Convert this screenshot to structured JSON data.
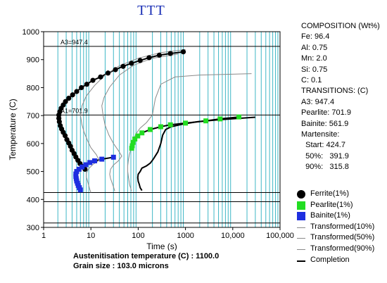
{
  "title": "TTT",
  "chart_data": {
    "type": "line",
    "xlabel": "Time (s)",
    "ylabel": "Temperature (C)",
    "x_scale": "log",
    "xlim": [
      1,
      100000
    ],
    "ylim": [
      300,
      1000
    ],
    "x_ticks": [
      {
        "value": 1,
        "label": "1"
      },
      {
        "value": 10,
        "label": "10"
      },
      {
        "value": 100,
        "label": "100"
      },
      {
        "value": 1000,
        "label": "1000"
      },
      {
        "value": 10000,
        "label": "10,000"
      },
      {
        "value": 100000,
        "label": "100,000"
      }
    ],
    "y_ticks": [
      300,
      400,
      500,
      600,
      700,
      800,
      900,
      1000
    ],
    "horizontal_lines": [
      {
        "y": 947.4,
        "label": "A3=947.4"
      },
      {
        "y": 701.9,
        "label": "A1=701.9"
      },
      {
        "y": 424.7,
        "label": ""
      },
      {
        "y": 391.9,
        "label": ""
      },
      {
        "y": 315.8,
        "label": ""
      }
    ],
    "series": [
      {
        "name": "Ferrite(1%)",
        "marker": "circle",
        "color": "#000000",
        "points": [
          [
            900,
            928
          ],
          [
            480,
            922
          ],
          [
            280,
            916
          ],
          [
            170,
            907
          ],
          [
            110,
            897
          ],
          [
            72,
            887
          ],
          [
            48,
            876
          ],
          [
            33,
            864
          ],
          [
            23,
            852
          ],
          [
            16,
            838
          ],
          [
            11,
            826
          ],
          [
            8.2,
            812
          ],
          [
            6.3,
            800
          ],
          [
            5,
            786
          ],
          [
            4.1,
            774
          ],
          [
            3.4,
            762
          ],
          [
            2.9,
            750
          ],
          [
            2.6,
            738
          ],
          [
            2.35,
            726
          ],
          [
            2.2,
            714
          ],
          [
            2.1,
            702
          ],
          [
            2.1,
            690
          ],
          [
            2.15,
            678
          ],
          [
            2.25,
            664
          ],
          [
            2.4,
            652
          ],
          [
            2.6,
            640
          ],
          [
            2.85,
            628
          ],
          [
            3.1,
            614
          ],
          [
            3.4,
            602
          ],
          [
            3.7,
            590
          ],
          [
            4.0,
            576
          ],
          [
            4.4,
            564
          ],
          [
            4.8,
            552
          ],
          [
            5.3,
            540
          ],
          [
            5.9,
            528
          ],
          [
            6.6,
            518
          ],
          [
            7.5,
            508
          ]
        ]
      },
      {
        "name": "Pearlite(1%)",
        "marker": "square",
        "color": "#22dd22",
        "points": [
          [
            13500,
            695
          ],
          [
            5400,
            688
          ],
          [
            2700,
            681
          ],
          [
            1000,
            673
          ],
          [
            480,
            667
          ],
          [
            300,
            660
          ],
          [
            180,
            650
          ],
          [
            120,
            638
          ],
          [
            98,
            627
          ],
          [
            85,
            616
          ],
          [
            78,
            604
          ],
          [
            75,
            592
          ],
          [
            73,
            583
          ]
        ]
      },
      {
        "name": "Bainite(1%)",
        "marker": "square",
        "color": "#1e2fe0",
        "points": [
          [
            30,
            551
          ],
          [
            17,
            544
          ],
          [
            12,
            538
          ],
          [
            9.5,
            532
          ],
          [
            7.8,
            524
          ],
          [
            6.5,
            516
          ],
          [
            5.6,
            508
          ],
          [
            5,
            500
          ],
          [
            4.8,
            491
          ],
          [
            4.8,
            482
          ],
          [
            4.9,
            474
          ],
          [
            5,
            466
          ],
          [
            5.2,
            458
          ],
          [
            5.4,
            450
          ],
          [
            5.7,
            442
          ],
          [
            6,
            434
          ]
        ]
      },
      {
        "name": "Transformed(10%)",
        "color": "#8a8a8a",
        "points": [
          [
            1000,
            936
          ],
          [
            300,
            925
          ],
          [
            100,
            905
          ],
          [
            40,
            878
          ],
          [
            20,
            845
          ],
          [
            12,
            808
          ],
          [
            8,
            770
          ],
          [
            6.5,
            735
          ],
          [
            6,
            702
          ],
          [
            6.4,
            670
          ],
          [
            7.2,
            640
          ],
          [
            8.5,
            610
          ],
          [
            10,
            585
          ],
          [
            13,
            560
          ],
          [
            15,
            540
          ],
          [
            11,
            525
          ],
          [
            9,
            510
          ],
          [
            8,
            495
          ],
          [
            8,
            480
          ],
          [
            8.5,
            465
          ],
          [
            9,
            450
          ],
          [
            9.5,
            435
          ],
          [
            10,
            425
          ]
        ]
      },
      {
        "name": "Transformed(50%)",
        "color": "#8a8a8a",
        "points": [
          [
            700,
            920
          ],
          [
            200,
            905
          ],
          [
            80,
            880
          ],
          [
            40,
            845
          ],
          [
            25,
            802
          ],
          [
            19,
            765
          ],
          [
            17,
            735
          ],
          [
            18,
            702
          ],
          [
            20,
            665
          ],
          [
            24,
            630
          ],
          [
            30,
            600
          ],
          [
            38,
            575
          ],
          [
            45,
            555
          ],
          [
            38,
            538
          ],
          [
            30,
            523
          ],
          [
            26,
            508
          ],
          [
            25,
            490
          ],
          [
            26,
            475
          ],
          [
            28,
            460
          ],
          [
            30,
            445
          ],
          [
            32,
            430
          ]
        ]
      },
      {
        "name": "Transformed(90%)",
        "color": "#8a8a8a",
        "points": [
          [
            25000,
            850
          ],
          [
            2000,
            845
          ],
          [
            600,
            838
          ],
          [
            300,
            812
          ],
          [
            230,
            760
          ],
          [
            200,
            702
          ],
          [
            150,
            675
          ],
          [
            110,
            655
          ],
          [
            90,
            635
          ],
          [
            80,
            615
          ],
          [
            75,
            598
          ],
          [
            70,
            580
          ],
          [
            65,
            560
          ],
          [
            62,
            540
          ],
          [
            60,
            520
          ],
          [
            60,
            500
          ],
          [
            62,
            482
          ],
          [
            64,
            466
          ],
          [
            66,
            452
          ],
          [
            70,
            438
          ],
          [
            72,
            430
          ]
        ]
      },
      {
        "name": "Completion",
        "color": "#000000",
        "points": [
          [
            30000,
            694
          ],
          [
            5000,
            685
          ],
          [
            1800,
            678
          ],
          [
            900,
            670
          ],
          [
            500,
            660
          ],
          [
            380,
            650
          ],
          [
            330,
            630
          ],
          [
            300,
            600
          ],
          [
            260,
            570
          ],
          [
            210,
            545
          ],
          [
            180,
            530
          ],
          [
            150,
            520
          ],
          [
            120,
            512
          ],
          [
            110,
            500
          ],
          [
            100,
            490
          ],
          [
            98,
            478
          ],
          [
            100,
            465
          ],
          [
            105,
            455
          ],
          [
            110,
            442
          ],
          [
            120,
            432
          ]
        ]
      }
    ]
  },
  "info": {
    "lines": [
      "COMPOSITION (Wt%)",
      "Fe: 96.4",
      "Al: 0.75",
      "Mn: 2.0",
      "Si: 0.75",
      "C: 0.1",
      "TRANSITIONS: (C)",
      "A3: 947.4",
      "Pearlite: 701.9",
      "Bainite: 561.9",
      "Martensite:",
      "  Start: 424.7",
      "  50%:   391.9",
      "  90%:   315.8"
    ]
  },
  "legend": [
    {
      "label": "Ferrite(1%)",
      "symbol": "circle",
      "color": "#000000"
    },
    {
      "label": "Pearlite(1%)",
      "symbol": "square",
      "color": "#22dd22"
    },
    {
      "label": "Bainite(1%)",
      "symbol": "square",
      "color": "#1e2fe0"
    },
    {
      "label": "Transformed(10%)",
      "symbol": "thin-line",
      "color": "#8a8a8a"
    },
    {
      "label": "Transformed(50%)",
      "symbol": "thin-line",
      "color": "#8a8a8a"
    },
    {
      "label": "Transformed(90%)",
      "symbol": "thin-line",
      "color": "#8a8a8a"
    },
    {
      "label": "Completion",
      "symbol": "thick-line",
      "color": "#000000"
    }
  ],
  "footer": {
    "austenitisation": "Austenitisation temperature (C) : 1100.0",
    "grain_size": "Grain size : 103.0 microns"
  }
}
